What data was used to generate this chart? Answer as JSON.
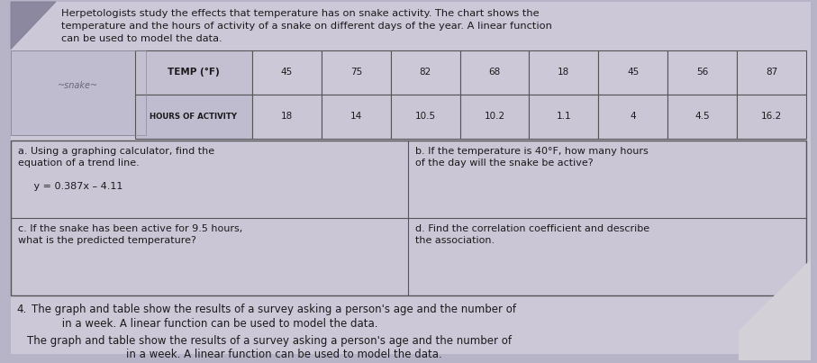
{
  "bg_color": "#b8b4c8",
  "page_color": "#ccc8d8",
  "table_cell_color": "#c8c4d4",
  "box_color": "#cac6d6",
  "corner_color": "#8c88a0",
  "text_color": "#1a1a1a",
  "border_color": "#555555",
  "intro_line1": "Herpetologists study the effects that temperature has on snake activity. The chart shows the",
  "intro_line2": "temperature and the hours of activity of a snake on different days of the year. A linear function",
  "intro_line3": "can be used to model the data.",
  "table_header_row": [
    "TEMP (°F)",
    "45",
    "75",
    "82",
    "68",
    "18",
    "45",
    "56",
    "87"
  ],
  "table_data_label": "HOURS OF ACTIVITY",
  "table_data_row": [
    "18",
    "14",
    "10.5",
    "10.2",
    "1.1",
    "4",
    "4.5",
    "16.2"
  ],
  "cell_a_line1": "a. Using a graphing calculator, find the",
  "cell_a_line2": "equation of a trend line.",
  "cell_a_line3": "     y = 0.387x – 4.11",
  "cell_b_line1": "b. If the temperature is 40°F, how many hours",
  "cell_b_line2": "of the day will the snake be active?",
  "cell_c_line1": "c. If the snake has been active for 9.5 hours,",
  "cell_c_line2": "what is the predicted temperature?",
  "cell_d_line1": "d. Find the correlation coefficient and describe",
  "cell_d_line2": "the association.",
  "footer_num": "4.",
  "footer_line1": "The graph and table show the results of a survey asking a person's age and the number of",
  "footer_line2": "         in a week. A linear function can be used to model the data.",
  "title_fontsize": 8.2,
  "cell_fontsize": 8.0,
  "table_fontsize": 7.5,
  "footer_fontsize": 8.5
}
